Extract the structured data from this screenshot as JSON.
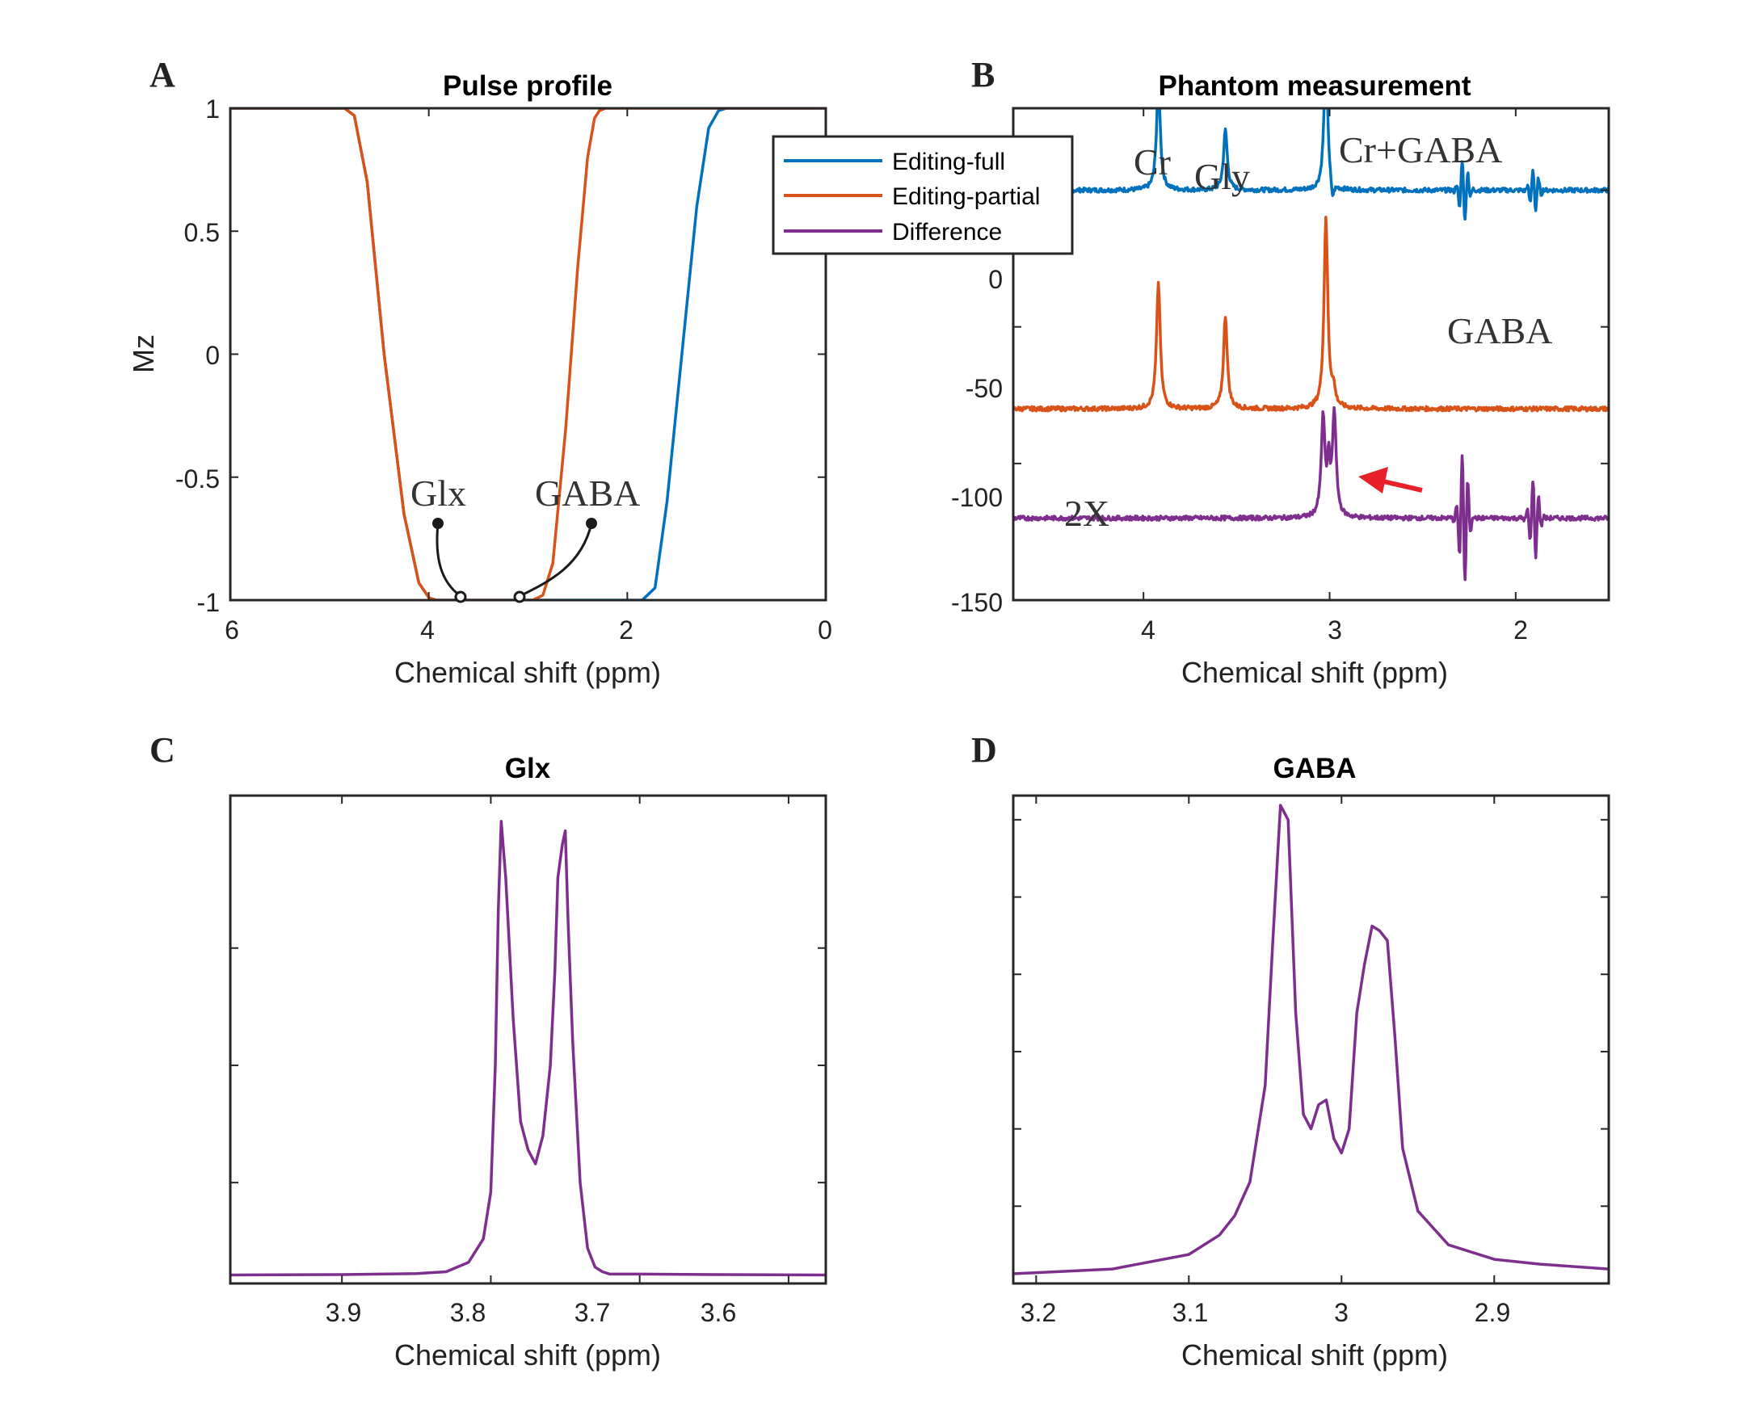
{
  "colors": {
    "editing_full": "#0072BD",
    "editing_partial": "#D95319",
    "difference": "#7E2F8E",
    "arrow": "#E8202A"
  },
  "chart_data": [
    {
      "panel": "A",
      "type": "line",
      "title": "Pulse profile",
      "xlabel": "Chemical shift (ppm)",
      "ylabel": "Mz",
      "xlim": [
        6,
        0
      ],
      "ylim": [
        -1,
        1
      ],
      "xticks": [
        "6",
        "4",
        "2",
        "0"
      ],
      "yticks": [
        "1",
        "0.5",
        "0",
        "-0.5",
        "-1"
      ],
      "series": [
        {
          "name": "Editing-full",
          "color": "editing_full",
          "x": [
            6,
            4.85,
            4.75,
            4.62,
            4.45,
            4.25,
            4.1,
            3.98,
            3.9,
            2.0,
            1.85,
            1.72,
            1.6,
            1.45,
            1.3,
            1.18,
            1.08,
            1.0,
            0
          ],
          "y": [
            1,
            1,
            0.97,
            0.7,
            0.0,
            -0.65,
            -0.93,
            -1,
            -1,
            -1,
            -1,
            -0.95,
            -0.6,
            0.0,
            0.6,
            0.92,
            0.99,
            1,
            1
          ]
        },
        {
          "name": "Editing-partial",
          "color": "editing_partial",
          "x": [
            6,
            4.85,
            4.75,
            4.62,
            4.45,
            4.25,
            4.1,
            4.0,
            3.92,
            2.95,
            2.85,
            2.75,
            2.62,
            2.5,
            2.4,
            2.33,
            2.28,
            2.22,
            0
          ],
          "y": [
            1,
            1,
            0.97,
            0.7,
            0.0,
            -0.65,
            -0.93,
            -0.99,
            -1,
            -1,
            -0.98,
            -0.85,
            -0.3,
            0.35,
            0.8,
            0.96,
            0.99,
            1,
            1
          ]
        }
      ],
      "annotations": [
        {
          "text": "Glx",
          "x_ppm": 3.72
        },
        {
          "text": "GABA",
          "x_ppm": 3.12
        }
      ]
    },
    {
      "panel": "B",
      "type": "line",
      "title": "Phantom measurement",
      "xlabel": "Chemical shift (ppm)",
      "ylabel": "",
      "xlim": [
        4.7,
        1.5
      ],
      "ylim": [
        -150,
        30
      ],
      "xticks": [
        "4",
        "3",
        "2"
      ],
      "yticks": [
        "0",
        "-50",
        "-100",
        "-150"
      ],
      "legend": [
        "Editing-full",
        "Editing-partial",
        "Difference"
      ],
      "series": [
        {
          "name": "Editing-full",
          "color": "editing_full",
          "baseline": 0,
          "peaks": [
            {
              "x": 3.92,
              "h": 40,
              "w": 0.012
            },
            {
              "x": 3.56,
              "h": 22,
              "w": 0.012
            },
            {
              "x": 3.02,
              "h": 51,
              "w": 0.012
            }
          ],
          "dispersive": [
            {
              "x": 2.28,
              "a": 12,
              "w": 0.012
            },
            {
              "x": 1.9,
              "a": 8,
              "w": 0.012
            }
          ],
          "dips": [
            {
              "x": 2.985,
              "h": -7,
              "w": 0.01
            }
          ]
        },
        {
          "name": "Editing-partial",
          "color": "editing_partial",
          "baseline": -80,
          "peaks": [
            {
              "x": 3.92,
              "h": 46,
              "w": 0.012
            },
            {
              "x": 3.56,
              "h": 34,
              "w": 0.012
            },
            {
              "x": 3.02,
              "h": 70,
              "w": 0.012
            },
            {
              "x": 2.98,
              "h": 6,
              "w": 0.012
            }
          ],
          "dispersive": [],
          "dips": []
        },
        {
          "name": "Difference",
          "color": "difference",
          "baseline": -120,
          "peaks": [
            {
              "x": 3.035,
              "h": 36,
              "w": 0.012
            },
            {
              "x": 2.975,
              "h": 38,
              "w": 0.012
            },
            {
              "x": 3.005,
              "h": 18,
              "w": 0.008
            }
          ],
          "dispersive": [
            {
              "x": 2.28,
              "a": 25,
              "w": 0.012
            },
            {
              "x": 1.9,
              "a": 15,
              "w": 0.012
            }
          ],
          "dips": []
        }
      ],
      "annotations": [
        "Cr",
        "Gly",
        "Cr+GABA",
        "GABA",
        "2X"
      ]
    },
    {
      "panel": "C",
      "type": "line",
      "title": "Glx",
      "xlabel": "Chemical shift (ppm)",
      "ylabel": "",
      "xlim": [
        3.975,
        3.575
      ],
      "ylim": [
        0,
        1
      ],
      "xticks": [
        "3.9",
        "3.8",
        "3.7",
        "3.6"
      ],
      "series": [
        {
          "name": "Difference",
          "color": "difference",
          "x": [
            3.975,
            3.9,
            3.85,
            3.83,
            3.815,
            3.805,
            3.8,
            3.797,
            3.795,
            3.793,
            3.79,
            3.785,
            3.78,
            3.775,
            3.77,
            3.765,
            3.76,
            3.757,
            3.755,
            3.752,
            3.75,
            3.748,
            3.745,
            3.74,
            3.735,
            3.73,
            3.725,
            3.72,
            3.7,
            3.65,
            3.575
          ],
          "y": [
            0.003,
            0.004,
            0.006,
            0.01,
            0.03,
            0.08,
            0.18,
            0.45,
            0.78,
            0.97,
            0.85,
            0.55,
            0.33,
            0.27,
            0.24,
            0.3,
            0.45,
            0.65,
            0.85,
            0.92,
            0.95,
            0.75,
            0.5,
            0.2,
            0.06,
            0.02,
            0.01,
            0.005,
            0.005,
            0.004,
            0.003
          ]
        }
      ]
    },
    {
      "panel": "D",
      "type": "line",
      "title": "GABA",
      "xlabel": "Chemical shift (ppm)",
      "ylabel": "",
      "xlim": [
        3.215,
        2.825
      ],
      "ylim": [
        0,
        1
      ],
      "xticks": [
        "3.2",
        "3.1",
        "3",
        "2.9"
      ],
      "series": [
        {
          "name": "Difference",
          "color": "difference",
          "x": [
            3.215,
            3.15,
            3.1,
            3.08,
            3.07,
            3.06,
            3.05,
            3.045,
            3.04,
            3.035,
            3.03,
            3.025,
            3.02,
            3.015,
            3.01,
            3.005,
            3.0,
            2.995,
            2.99,
            2.985,
            2.98,
            2.975,
            2.97,
            2.965,
            2.96,
            2.95,
            2.93,
            2.9,
            2.87,
            2.825
          ],
          "y": [
            0.01,
            0.02,
            0.05,
            0.09,
            0.13,
            0.2,
            0.4,
            0.7,
            0.98,
            0.95,
            0.55,
            0.34,
            0.31,
            0.36,
            0.37,
            0.29,
            0.26,
            0.31,
            0.55,
            0.65,
            0.73,
            0.72,
            0.7,
            0.5,
            0.27,
            0.14,
            0.07,
            0.04,
            0.03,
            0.02
          ]
        }
      ]
    }
  ]
}
